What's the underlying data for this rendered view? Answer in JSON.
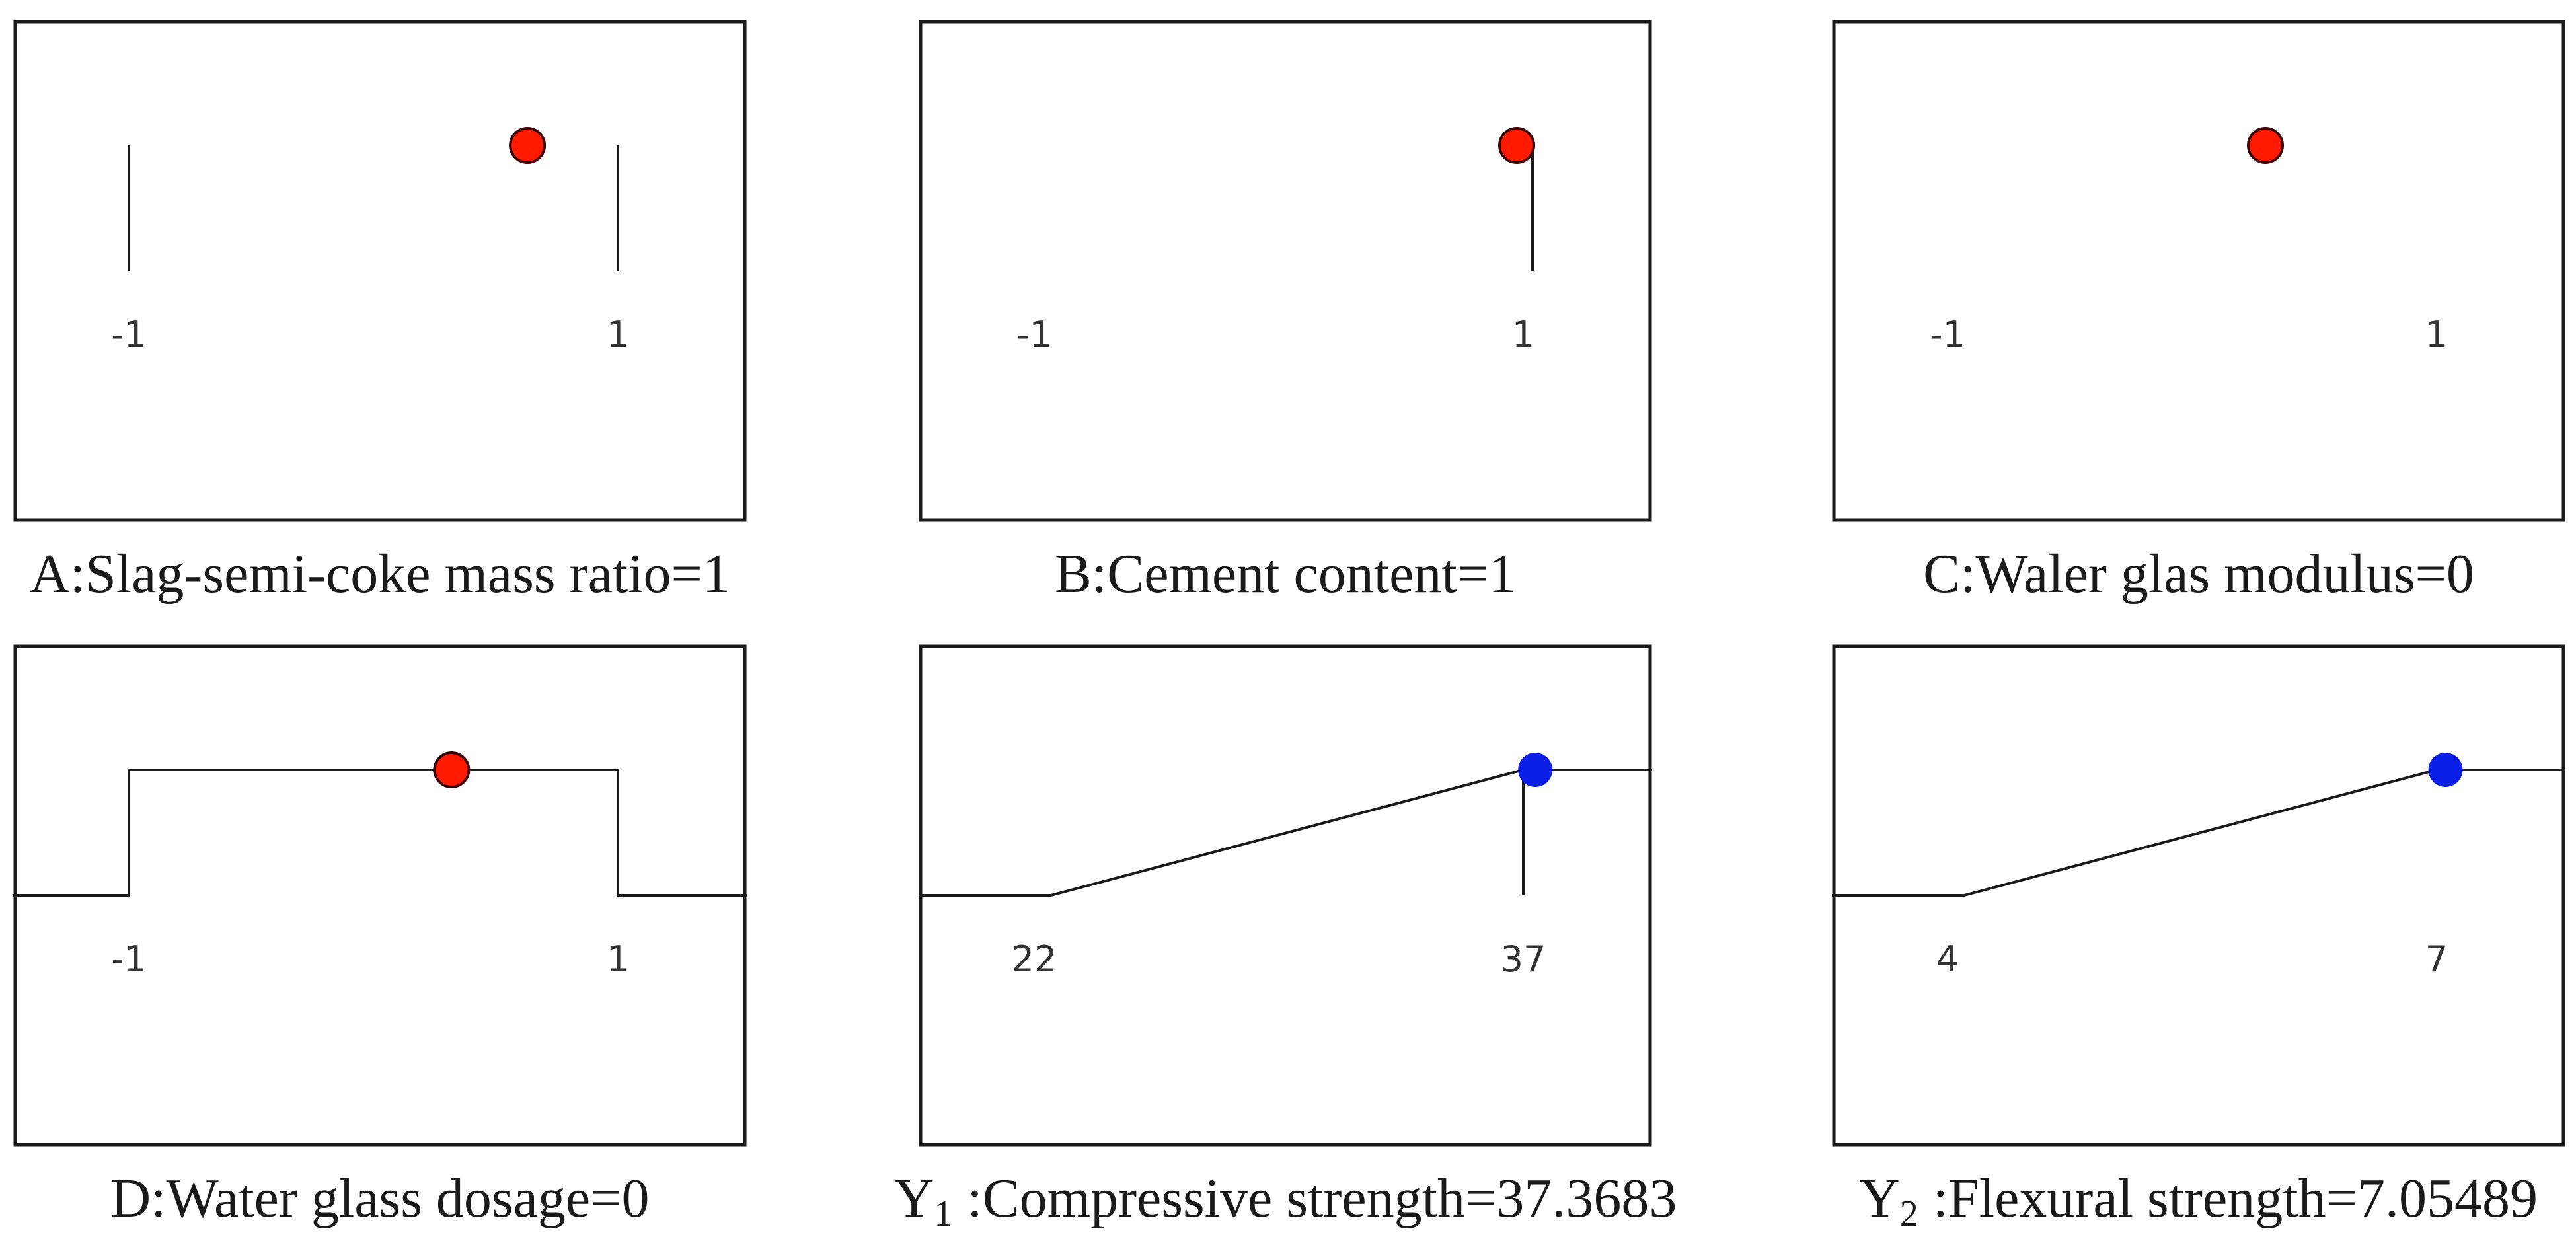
{
  "chart_data": [
    {
      "type": "ramp",
      "title": "A:Slag-semi-coke mass ratio=1",
      "ticks": [
        "-1",
        "1"
      ],
      "range": [
        -1,
        1
      ],
      "value": 0.63,
      "marker_color": "#ff1a00",
      "shape": "bounds"
    },
    {
      "type": "ramp",
      "title": "B:Cement content=1",
      "ticks": [
        "-1",
        "1"
      ],
      "range": [
        -1,
        1
      ],
      "value": 1,
      "marker_color": "#ff1a00",
      "shape": "target-max"
    },
    {
      "type": "ramp",
      "title": "C:Waler glas modulus=0",
      "ticks": [
        "-1",
        "1"
      ],
      "range": [
        -1,
        1
      ],
      "value": 0.3,
      "marker_color": "#ff1a00",
      "shape": "none"
    },
    {
      "type": "ramp",
      "title": "D:Water glass dosage=0",
      "ticks": [
        "-1",
        "1"
      ],
      "range": [
        -1,
        1
      ],
      "value": 0.32,
      "marker_color": "#ff1a00",
      "shape": "in-range"
    },
    {
      "type": "ramp",
      "title_prefix": "Y",
      "title_sub": "1",
      "title": ":Compressive strength=37.3683",
      "ticks": [
        "22",
        "37"
      ],
      "range": [
        22,
        37
      ],
      "value": 37.3683,
      "marker_color": "#0a1ee6",
      "shape": "maximize"
    },
    {
      "type": "ramp",
      "title_prefix": "Y",
      "title_sub": "2",
      "title": ":Flexural strength=7.05489",
      "ticks": [
        "4",
        "7"
      ],
      "range": [
        4,
        7
      ],
      "value": 7.05489,
      "marker_color": "#0a1ee6",
      "shape": "maximize"
    }
  ]
}
